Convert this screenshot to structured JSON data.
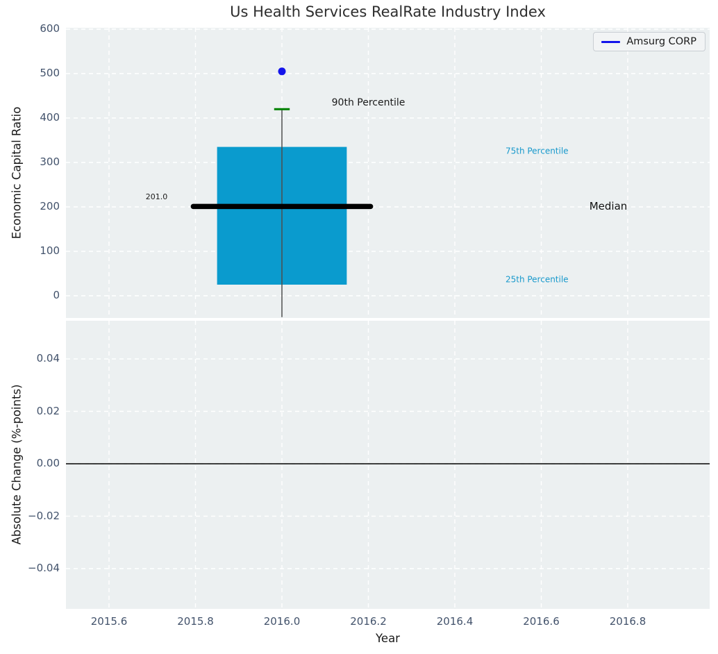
{
  "title": "Us Health Services RealRate Industry Index",
  "legend": {
    "label": "Amsurg CORP",
    "line_color": "#1414eb"
  },
  "colors": {
    "figure_bg": "#ffffff",
    "plot_bg": "#ecf0f1",
    "grid": "#ffffff",
    "box_fill": "#0a9bce",
    "median_line": "#000000",
    "whisker": "#4d4d4d",
    "cap": "#008000",
    "point": "#1414eb",
    "tick_label": "#42526b",
    "axis_label": "#1a1a1a",
    "title": "#2d2d2d",
    "zero_line": "#000000",
    "percentile_text": "#1899cc"
  },
  "x_axis": {
    "label": "Year",
    "ticks": [
      {
        "v": 2015.6,
        "label": "2015.6"
      },
      {
        "v": 2015.8,
        "label": "2015.8"
      },
      {
        "v": 2016.0,
        "label": "2016.0"
      },
      {
        "v": 2016.2,
        "label": "2016.2"
      },
      {
        "v": 2016.4,
        "label": "2016.4"
      },
      {
        "v": 2016.6,
        "label": "2016.6"
      },
      {
        "v": 2016.8,
        "label": "2016.8"
      }
    ],
    "xlim": [
      2015.5,
      2016.99
    ]
  },
  "chart_data": [
    {
      "type": "boxplot",
      "title": "Us Health Services RealRate Industry Index",
      "ylabel": "Economic Capital Ratio",
      "xlabel": "Year",
      "ylim": [
        -48,
        606
      ],
      "grid": "white-dashed",
      "yticks": [
        {
          "v": 0,
          "label": "0"
        },
        {
          "v": 100,
          "label": "100"
        },
        {
          "v": 200,
          "label": "200"
        },
        {
          "v": 300,
          "label": "300"
        },
        {
          "v": 400,
          "label": "400"
        },
        {
          "v": 500,
          "label": "500"
        },
        {
          "v": 600,
          "label": "600"
        }
      ],
      "box": {
        "x": 2016.0,
        "box_width_years": 0.3,
        "q1": 25,
        "median": 201.0,
        "q3": 335,
        "whisker_low": -48,
        "whisker_high": 420,
        "cap_halfwidth_years": 0.018,
        "median_line_halfwidth_years": 0.205
      },
      "series": [
        {
          "name": "Amsurg CORP",
          "x": 2016.0,
          "value": 505,
          "marker": "circle-dot"
        }
      ],
      "annotations": [
        {
          "text": "90th Percentile",
          "x": 2016.2,
          "y": 434,
          "color": "#1a1a1a",
          "size": 14
        },
        {
          "text": "75th Percentile",
          "x": 2016.59,
          "y": 325,
          "color": "#1899cc",
          "size": 12
        },
        {
          "text": "Median",
          "x": 2016.755,
          "y": 201,
          "color": "#111111",
          "size": 15
        },
        {
          "text": "25th Percentile",
          "x": 2016.59,
          "y": 36,
          "color": "#1899cc",
          "size": 12
        },
        {
          "text": "201.0",
          "x": 2015.71,
          "y": 222,
          "color": "#1a1a1a",
          "size": 11
        }
      ]
    },
    {
      "type": "line",
      "ylabel": "Absolute Change (%-points)",
      "ylim": [
        -0.055,
        0.055
      ],
      "grid": "white-dashed",
      "yticks": [
        {
          "v": 0.04,
          "label": "0.04"
        },
        {
          "v": 0.02,
          "label": "0.02"
        },
        {
          "v": 0.0,
          "label": "0.00"
        },
        {
          "v": -0.02,
          "label": "−0.02"
        },
        {
          "v": -0.04,
          "label": "−0.04"
        }
      ],
      "zero_line": 0.0
    }
  ]
}
